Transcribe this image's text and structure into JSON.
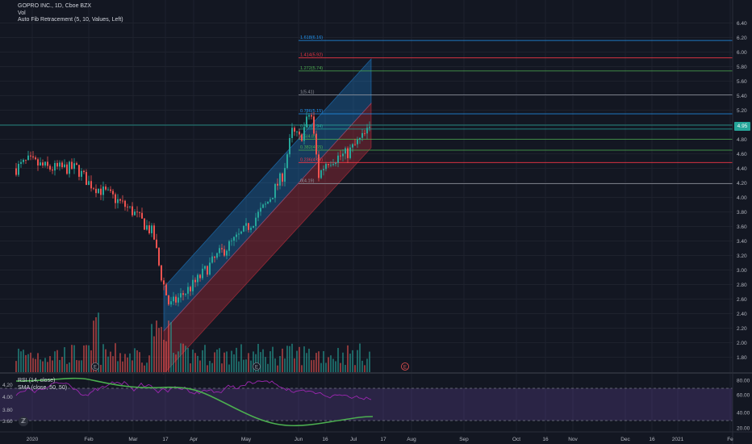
{
  "legend": {
    "symbol": "GOPRO INC., 1D, Cboe BZX",
    "vol": "Vol",
    "indicator": "Auto Fib Retracement (5, 10, Values, Left)"
  },
  "rsi_legend": {
    "rsi": "RSI (14, close)",
    "sma": "SMA (close, 50, 50)"
  },
  "last_price": "4.95",
  "logo_glyph": "ℤ",
  "price_axis": {
    "labels": [
      "6.40",
      "6.20",
      "6.00",
      "5.80",
      "5.60",
      "5.40",
      "5.20",
      "5.00",
      "4.80",
      "4.60",
      "4.40",
      "4.20",
      "4.00",
      "3.80",
      "3.60",
      "3.40",
      "3.20",
      "3.00",
      "2.80",
      "2.60",
      "2.40",
      "2.20",
      "2.00",
      "1.80"
    ],
    "values": [
      6.4,
      6.2,
      6.0,
      5.8,
      5.6,
      5.4,
      5.2,
      5.0,
      4.8,
      4.6,
      4.4,
      4.2,
      4.0,
      3.8,
      3.6,
      3.4,
      3.2,
      3.0,
      2.8,
      2.6,
      2.4,
      2.2,
      2.0,
      1.8
    ]
  },
  "rsi_axis": {
    "labels": [
      "80.00",
      "60.00",
      "40.00",
      "20.00"
    ]
  },
  "left_axis": {
    "labels": [
      "4.20",
      "4.00",
      "3.80",
      "3.60"
    ]
  },
  "time_axis": {
    "labels": [
      "2020",
      "Feb",
      "Mar",
      "17",
      "Apr",
      "May",
      "Jun",
      "16",
      "Jul",
      "17",
      "Aug",
      "Sep",
      "Oct",
      "16",
      "Nov",
      "Dec",
      "16",
      "2021",
      "Fe"
    ]
  },
  "fib_levels": [
    {
      "label": "1.618(6.16)",
      "value": 6.16,
      "color": "#2196f3"
    },
    {
      "label": "1.414(5.92)",
      "value": 5.92,
      "color": "#f23645"
    },
    {
      "label": "1.272(5.74)",
      "value": 5.74,
      "color": "#4caf50"
    },
    {
      "label": "1(5.41)",
      "value": 5.41,
      "color": "#9598a1"
    },
    {
      "label": "0.786(5.15)",
      "value": 5.15,
      "color": "#2196f3"
    },
    {
      "label": "0.618(4.94)",
      "value": 4.94,
      "color": "#26a69a"
    },
    {
      "label": "0.5(4.8)",
      "value": 4.8,
      "color": "#4caf50"
    },
    {
      "label": "0.382(4.65)",
      "value": 4.65,
      "color": "#4caf50"
    },
    {
      "label": "0.236(4.48)",
      "value": 4.48,
      "color": "#f23645"
    },
    {
      "label": "0(4.19)",
      "value": 4.19,
      "color": "#9598a1"
    }
  ],
  "events": [
    "E",
    "E",
    "E"
  ],
  "colors": {
    "up": "#26a69a",
    "down": "#ef5350",
    "rsi": "#9c27b0",
    "sma": "#4caf50"
  }
}
